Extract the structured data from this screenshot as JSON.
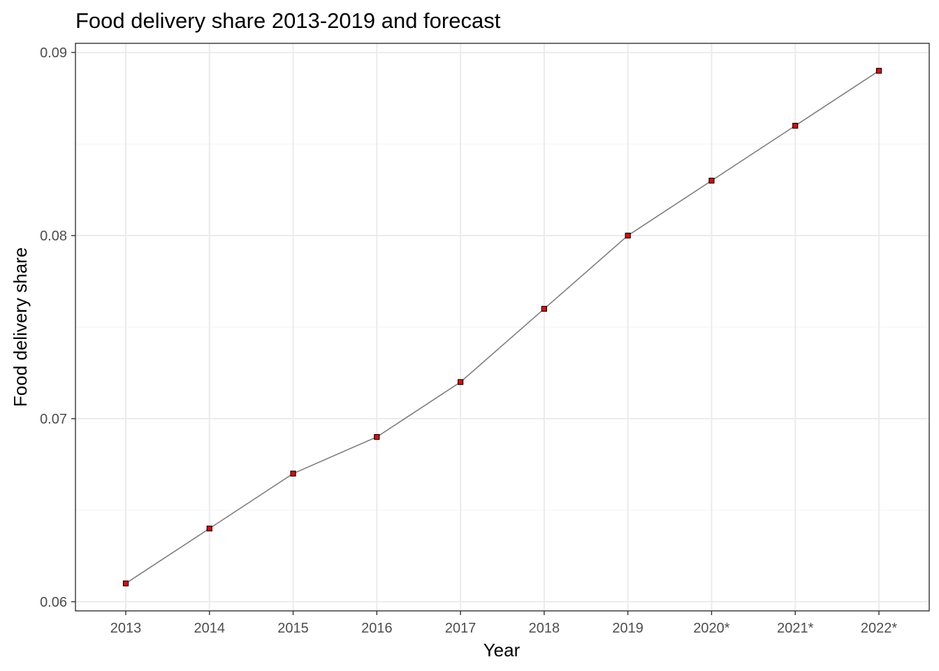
{
  "chart_data": {
    "type": "line",
    "title": "Food delivery share 2013-2019 and forecast",
    "xlabel": "Year",
    "ylabel": "Food delivery share",
    "categories": [
      "2013",
      "2014",
      "2015",
      "2016",
      "2017",
      "2018",
      "2019",
      "2020*",
      "2021*",
      "2022*"
    ],
    "series": [
      {
        "values": [
          0.061,
          0.064,
          0.067,
          0.069,
          0.072,
          0.076,
          0.08,
          0.083,
          0.086,
          0.089
        ]
      }
    ],
    "y_ticks": [
      "0.06",
      "0.07",
      "0.08",
      "0.09"
    ],
    "ylim": [
      0.0595,
      0.0905
    ],
    "grid": true,
    "legend": "none",
    "colors": {
      "line": "#7f7f7f",
      "marker_fill": "#ff0000",
      "marker_stroke": "#000000",
      "grid_major": "#ebebeb",
      "grid_minor": "#f4f4f4",
      "panel_border": "#333333"
    }
  }
}
